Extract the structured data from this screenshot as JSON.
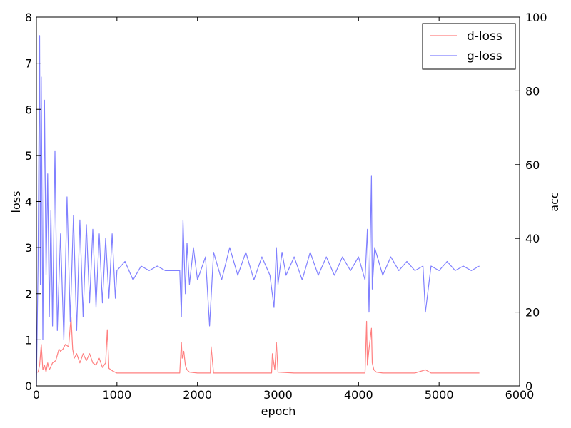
{
  "chart_data": {
    "type": "line",
    "title": "",
    "xlabel": "epoch",
    "ylabel": "loss",
    "y2label": "acc",
    "xlim": [
      0,
      6000
    ],
    "ylim": [
      0,
      8
    ],
    "y2lim": [
      0,
      100
    ],
    "xticks": [
      "0",
      "1000",
      "2000",
      "3000",
      "4000",
      "5000",
      "6000"
    ],
    "yticks": [
      "0",
      "1",
      "2",
      "3",
      "4",
      "5",
      "6",
      "7",
      "8"
    ],
    "y2ticks": [
      "0",
      "20",
      "40",
      "60",
      "80",
      "100"
    ],
    "grid": false,
    "legend_position": "top-right",
    "series": [
      {
        "name": "d-loss",
        "color": "#ff8080",
        "x": [
          0,
          20,
          40,
          60,
          80,
          100,
          120,
          140,
          160,
          200,
          240,
          280,
          300,
          330,
          360,
          400,
          430,
          450,
          470,
          500,
          540,
          580,
          620,
          660,
          700,
          740,
          780,
          820,
          860,
          880,
          900,
          950,
          1000,
          1200,
          1400,
          1600,
          1780,
          1800,
          1810,
          1830,
          1850,
          1870,
          1900,
          2000,
          2100,
          2160,
          2170,
          2200,
          2400,
          2600,
          2800,
          2920,
          2930,
          2960,
          2980,
          3000,
          3200,
          3400,
          3600,
          3800,
          4000,
          4080,
          4100,
          4110,
          4130,
          4160,
          4170,
          4190,
          4220,
          4300,
          4500,
          4700,
          4830,
          4900,
          5100,
          5300,
          5500
        ],
        "values": [
          0.3,
          0.3,
          0.45,
          0.9,
          0.35,
          0.45,
          0.3,
          0.5,
          0.35,
          0.5,
          0.55,
          0.8,
          0.75,
          0.8,
          0.9,
          0.85,
          1.5,
          0.8,
          0.6,
          0.7,
          0.5,
          0.7,
          0.55,
          0.7,
          0.5,
          0.45,
          0.6,
          0.4,
          0.5,
          1.22,
          0.38,
          0.32,
          0.28,
          0.28,
          0.28,
          0.28,
          0.28,
          0.95,
          0.6,
          0.75,
          0.45,
          0.35,
          0.3,
          0.28,
          0.28,
          0.28,
          0.85,
          0.28,
          0.28,
          0.28,
          0.28,
          0.28,
          0.7,
          0.35,
          0.95,
          0.3,
          0.28,
          0.28,
          0.28,
          0.28,
          0.28,
          0.28,
          1.4,
          0.45,
          0.8,
          1.25,
          0.5,
          0.35,
          0.3,
          0.28,
          0.28,
          0.28,
          0.35,
          0.28,
          0.28,
          0.28,
          0.28
        ]
      },
      {
        "name": "g-loss",
        "color": "#8080ff",
        "x": [
          0,
          20,
          40,
          50,
          60,
          80,
          100,
          120,
          140,
          160,
          180,
          200,
          230,
          260,
          300,
          340,
          380,
          420,
          460,
          500,
          540,
          580,
          620,
          660,
          700,
          740,
          780,
          820,
          860,
          900,
          940,
          980,
          1000,
          1100,
          1200,
          1300,
          1400,
          1500,
          1600,
          1700,
          1780,
          1800,
          1820,
          1850,
          1870,
          1900,
          1950,
          2000,
          2100,
          2150,
          2200,
          2300,
          2400,
          2500,
          2600,
          2700,
          2800,
          2900,
          2950,
          2980,
          3000,
          3050,
          3100,
          3200,
          3300,
          3400,
          3500,
          3600,
          3700,
          3800,
          3900,
          4000,
          4080,
          4110,
          4130,
          4160,
          4170,
          4200,
          4300,
          4400,
          4500,
          4600,
          4700,
          4800,
          4830,
          4900,
          5000,
          5100,
          5200,
          5300,
          5400,
          5500
        ],
        "values": [
          0.0,
          2.6,
          7.6,
          2.2,
          6.7,
          1.0,
          6.2,
          2.4,
          4.6,
          1.5,
          3.8,
          1.3,
          5.1,
          1.2,
          3.3,
          1.0,
          4.1,
          1.4,
          3.7,
          1.2,
          3.6,
          1.5,
          3.5,
          1.8,
          3.4,
          1.7,
          3.3,
          1.8,
          3.2,
          1.9,
          3.3,
          1.9,
          2.5,
          2.7,
          2.3,
          2.6,
          2.5,
          2.6,
          2.5,
          2.5,
          2.5,
          1.5,
          3.6,
          2.0,
          3.1,
          2.2,
          3.0,
          2.3,
          2.8,
          1.3,
          2.9,
          2.3,
          3.0,
          2.4,
          2.9,
          2.3,
          2.8,
          2.4,
          1.7,
          3.0,
          2.2,
          2.9,
          2.4,
          2.8,
          2.3,
          2.9,
          2.4,
          2.8,
          2.4,
          2.8,
          2.5,
          2.8,
          2.3,
          3.4,
          1.6,
          4.55,
          2.1,
          3.0,
          2.4,
          2.8,
          2.5,
          2.7,
          2.5,
          2.6,
          1.6,
          2.6,
          2.5,
          2.7,
          2.5,
          2.6,
          2.5,
          2.6
        ]
      }
    ]
  }
}
